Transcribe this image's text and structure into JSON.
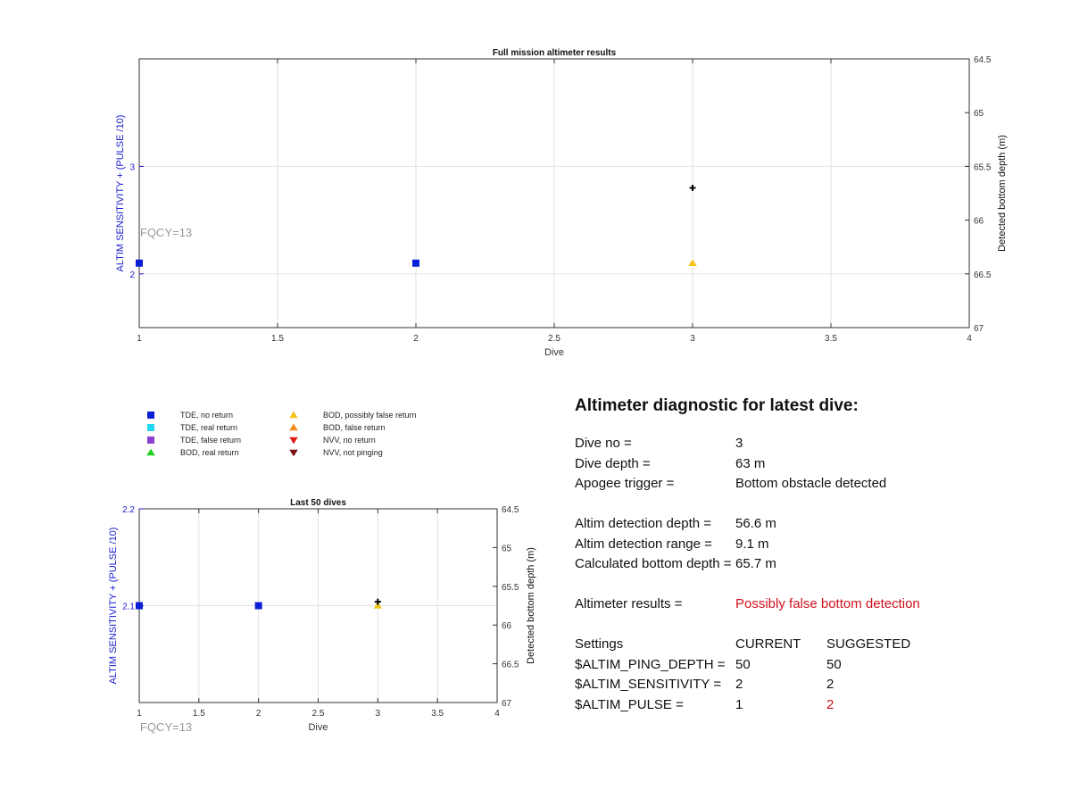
{
  "colors": {
    "tde_no_return": "#0a1ed6",
    "tde_real_return": "#22d8ee",
    "tde_false_return": "#8a3fd1",
    "bod_real_return": "#1fd41f",
    "bod_possibly_false_return": "#f2c418",
    "bod_false_return": "#f28c18",
    "nvv_no_return": "#e01b1b",
    "nvv_not_pinging": "#7a1010",
    "apogee_marker": "#000000",
    "left_axis": "#1a1ad0",
    "annotation": "#9a9a9a",
    "warning": "#d0111b"
  },
  "legend": [
    {
      "label": "TDE, no return",
      "shape": "square",
      "color_key": "tde_no_return"
    },
    {
      "label": "TDE, real return",
      "shape": "square",
      "color_key": "tde_real_return"
    },
    {
      "label": "TDE, false return",
      "shape": "square",
      "color_key": "tde_false_return"
    },
    {
      "label": "BOD, real return",
      "shape": "triangle-up",
      "color_key": "bod_real_return"
    },
    {
      "label": "BOD, possibly false return",
      "shape": "triangle-up",
      "color_key": "bod_possibly_false_return"
    },
    {
      "label": "BOD, false return",
      "shape": "triangle-up",
      "color_key": "bod_false_return"
    },
    {
      "label": "NVV, no return",
      "shape": "triangle-down",
      "color_key": "nvv_no_return"
    },
    {
      "label": "NVV, not pinging",
      "shape": "triangle-down",
      "color_key": "nvv_not_pinging"
    }
  ],
  "chart_data": [
    {
      "type": "scatter",
      "title": "Full mission altimeter results",
      "xlabel": "Dive",
      "ylabel": "ALTIM SENSITIVITY + (PULSE /10)",
      "y2label": "Detected bottom depth (m)",
      "xlim": [
        1,
        4
      ],
      "ylim": [
        1.5,
        4
      ],
      "y2lim": [
        64.5,
        67
      ],
      "y2_reversed": true,
      "grid": true,
      "xticks": [
        "1",
        "1.5",
        "2",
        "2.5",
        "3",
        "3.5",
        "4"
      ],
      "yticks": [
        "2",
        "3"
      ],
      "y2ticks": [
        "64.5",
        "65",
        "65.5",
        "66",
        "66.5",
        "67"
      ],
      "annotation": "FQCY=13",
      "series": [
        {
          "marker": "square",
          "color_key": "tde_no_return",
          "x": [
            1,
            2
          ],
          "y": [
            2.1,
            2.1
          ]
        },
        {
          "marker": "triangle-up",
          "color_key": "bod_possibly_false_return",
          "x": [
            3
          ],
          "y": [
            2.1
          ]
        },
        {
          "marker": "plus",
          "color_key": "apogee_marker",
          "axis": "right",
          "x": [
            3
          ],
          "y": [
            65.7
          ]
        }
      ]
    },
    {
      "type": "scatter",
      "title": "Last 50 dives",
      "xlabel": "Dive",
      "ylabel": "ALTIM SENSITIVITY + (PULSE /10)",
      "y2label": "Detected bottom depth (m)",
      "xlim": [
        1,
        4
      ],
      "ylim": [
        2,
        2.2
      ],
      "y2lim": [
        64.5,
        67
      ],
      "y2_reversed": true,
      "grid": true,
      "xticks": [
        "1",
        "1.5",
        "2",
        "2.5",
        "3",
        "3.5",
        "4"
      ],
      "yticks": [
        "2.1",
        "2.2"
      ],
      "y2ticks": [
        "64.5",
        "65",
        "65.5",
        "66",
        "66.5",
        "67"
      ],
      "annotation": "FQCY=13",
      "series": [
        {
          "marker": "square",
          "color_key": "tde_no_return",
          "x": [
            1,
            2
          ],
          "y": [
            2.1,
            2.1
          ]
        },
        {
          "marker": "triangle-up",
          "color_key": "bod_possibly_false_return",
          "x": [
            3
          ],
          "y": [
            2.1
          ]
        },
        {
          "marker": "plus",
          "color_key": "apogee_marker",
          "axis": "right",
          "x": [
            3
          ],
          "y": [
            65.7
          ]
        }
      ]
    }
  ],
  "diagnostic": {
    "title": "Altimeter diagnostic for latest dive:",
    "dive_no_label": "Dive no =",
    "dive_no_value": "3",
    "dive_depth_label": "Dive depth =",
    "dive_depth_value": "63 m",
    "apogee_label": "Apogee trigger =",
    "apogee_value": "Bottom obstacle detected",
    "det_depth_label": "Altim detection depth =",
    "det_depth_value": "56.6 m",
    "det_range_label": "Altim detection range =",
    "det_range_value": "9.1 m",
    "calc_depth_label": "Calculated bottom depth =",
    "calc_depth_value": "65.7 m",
    "results_label": "Altimeter results =",
    "results_value": "Possibly false bottom detection",
    "settings": {
      "label": "Settings",
      "current_header": "CURRENT",
      "suggested_header": "SUGGESTED",
      "rows": [
        {
          "name": "$ALTIM_PING_DEPTH =",
          "current": "50",
          "suggested": "50"
        },
        {
          "name": "$ALTIM_SENSITIVITY =",
          "current": "2",
          "suggested": "2"
        },
        {
          "name": "$ALTIM_PULSE =",
          "current": "1",
          "suggested": "2"
        }
      ]
    }
  }
}
